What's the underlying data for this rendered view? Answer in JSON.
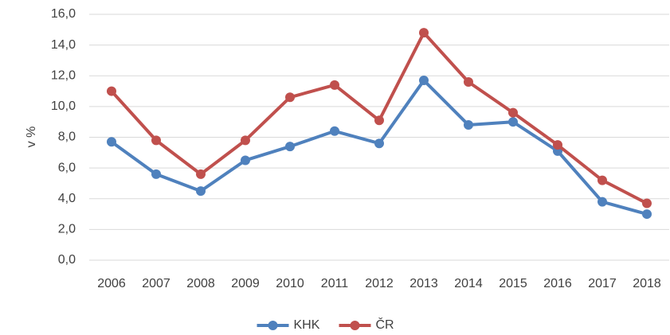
{
  "chart_data": {
    "type": "line",
    "y_label": "v %",
    "categories": [
      "2006",
      "2007",
      "2008",
      "2009",
      "2010",
      "2011",
      "2012",
      "2013",
      "2014",
      "2015",
      "2016",
      "2017",
      "2018"
    ],
    "series": [
      {
        "name": "KHK",
        "color": "#4f81bd",
        "values": [
          7.7,
          5.6,
          4.5,
          6.5,
          7.4,
          8.4,
          7.6,
          11.7,
          8.8,
          9.0,
          7.1,
          3.8,
          3.0
        ]
      },
      {
        "name": "ČR",
        "color": "#c0504d",
        "values": [
          11.0,
          7.8,
          5.6,
          7.8,
          10.6,
          11.4,
          9.1,
          14.8,
          11.6,
          9.6,
          7.5,
          5.2,
          3.7
        ]
      }
    ],
    "ylim": [
      0,
      16
    ],
    "yticks": [
      {
        "value": 0,
        "label": "0,0"
      },
      {
        "value": 2,
        "label": "2,0"
      },
      {
        "value": 4,
        "label": "4,0"
      },
      {
        "value": 6,
        "label": "6,0"
      },
      {
        "value": 8,
        "label": "8,0"
      },
      {
        "value": 10,
        "label": "10,0"
      },
      {
        "value": 12,
        "label": "12,0"
      },
      {
        "value": 14,
        "label": "14,0"
      },
      {
        "value": 16,
        "label": "16,0"
      }
    ],
    "grid": true,
    "legend": "bottom"
  }
}
